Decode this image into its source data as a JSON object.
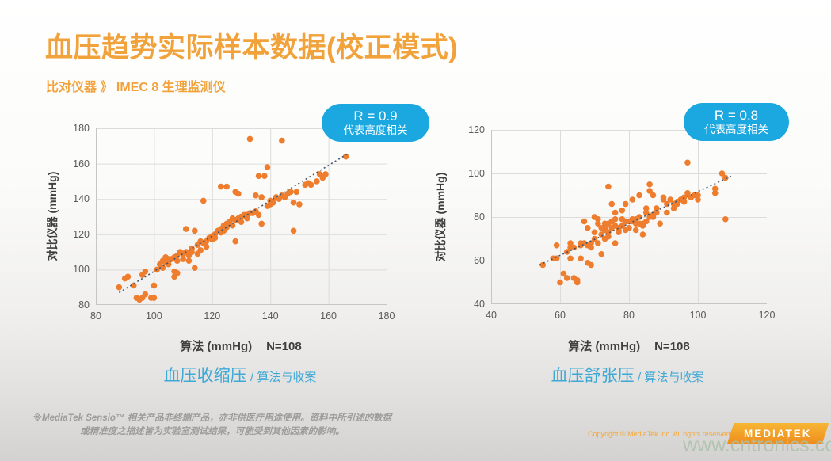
{
  "title": "血压趋势实际样本数据(校正模式)",
  "subtitle": "比对仪器 》 IMEC 8 生理监测仪",
  "footnote": {
    "line1": "※MediaTek Sensio™ 相关产品非终端产品，亦非供医疗用途使用。资料中所引述的数据",
    "line2": "或精准度之描述皆为实验室测试结果，可能受到其他因素的影响。"
  },
  "copyright": "Copyright © MediaTek Inc. All rights reserved",
  "logo_text": "MEDIATEK",
  "watermark": "www.cntronics.com",
  "colors": {
    "accent_orange": "#F1A23B",
    "point_orange": "#EE7D2E",
    "badge_cyan": "#1BA8E0",
    "caption_cyan": "#3FA9D6",
    "trend_blue": "#44546A",
    "grid_gray": "#DCDCDC",
    "axis_gray": "#C6C6C6",
    "tick_text": "#595959"
  },
  "chart_data": [
    {
      "type": "scatter",
      "caption": "血压收缩压",
      "caption_suffix": "/ 算法与收案",
      "xlabel": "算法 (mmHg)",
      "n_label": "N=108",
      "ylabel": "对比仪器 (mmHg)",
      "xlim": [
        80,
        180
      ],
      "ylim": [
        80,
        180
      ],
      "xticks": [
        80,
        100,
        120,
        140,
        160,
        180
      ],
      "yticks": [
        80,
        100,
        120,
        140,
        160,
        180
      ],
      "grid": true,
      "badge": {
        "line1": "R = 0.9",
        "line2": "代表高度相关"
      },
      "trend": [
        [
          88,
          87
        ],
        [
          167,
          166
        ]
      ],
      "points": [
        [
          88,
          90
        ],
        [
          90,
          95
        ],
        [
          91,
          96
        ],
        [
          93,
          91
        ],
        [
          94,
          84
        ],
        [
          95,
          83
        ],
        [
          96,
          84
        ],
        [
          96,
          97
        ],
        [
          97,
          99
        ],
        [
          97,
          86
        ],
        [
          99,
          84
        ],
        [
          100,
          91
        ],
        [
          100,
          84
        ],
        [
          101,
          100
        ],
        [
          102,
          103
        ],
        [
          103,
          101
        ],
        [
          103,
          105
        ],
        [
          104,
          107
        ],
        [
          104,
          104
        ],
        [
          105,
          106
        ],
        [
          105,
          103
        ],
        [
          106,
          106
        ],
        [
          107,
          107
        ],
        [
          107,
          96
        ],
        [
          107,
          99
        ],
        [
          108,
          108
        ],
        [
          108,
          105
        ],
        [
          108,
          98
        ],
        [
          109,
          110
        ],
        [
          110,
          109
        ],
        [
          110,
          106
        ],
        [
          111,
          123
        ],
        [
          111,
          110
        ],
        [
          112,
          108
        ],
        [
          112,
          105
        ],
        [
          113,
          112
        ],
        [
          113,
          110
        ],
        [
          114,
          101
        ],
        [
          114,
          122
        ],
        [
          115,
          114
        ],
        [
          115,
          109
        ],
        [
          116,
          116
        ],
        [
          116,
          111
        ],
        [
          117,
          139
        ],
        [
          117,
          115
        ],
        [
          118,
          116
        ],
        [
          118,
          113
        ],
        [
          119,
          118
        ],
        [
          120,
          119
        ],
        [
          120,
          117
        ],
        [
          121,
          120
        ],
        [
          121,
          118
        ],
        [
          122,
          122
        ],
        [
          123,
          147
        ],
        [
          123,
          123
        ],
        [
          123,
          121
        ],
        [
          124,
          125
        ],
        [
          124,
          122
        ],
        [
          125,
          147
        ],
        [
          125,
          124
        ],
        [
          125,
          126
        ],
        [
          126,
          127
        ],
        [
          127,
          129
        ],
        [
          127,
          125
        ],
        [
          128,
          144
        ],
        [
          128,
          116
        ],
        [
          128,
          128
        ],
        [
          129,
          129
        ],
        [
          129,
          143
        ],
        [
          130,
          130
        ],
        [
          130,
          127
        ],
        [
          131,
          131
        ],
        [
          132,
          131
        ],
        [
          132,
          129
        ],
        [
          133,
          174
        ],
        [
          133,
          132
        ],
        [
          134,
          132
        ],
        [
          135,
          142
        ],
        [
          135,
          133
        ],
        [
          136,
          131
        ],
        [
          136,
          153
        ],
        [
          137,
          126
        ],
        [
          137,
          141
        ],
        [
          138,
          153
        ],
        [
          139,
          158
        ],
        [
          139,
          136
        ],
        [
          140,
          137
        ],
        [
          140,
          139
        ],
        [
          141,
          138
        ],
        [
          142,
          141
        ],
        [
          143,
          140
        ],
        [
          144,
          173
        ],
        [
          144,
          142
        ],
        [
          145,
          141
        ],
        [
          146,
          143
        ],
        [
          147,
          144
        ],
        [
          148,
          138
        ],
        [
          148,
          122
        ],
        [
          149,
          144
        ],
        [
          150,
          137
        ],
        [
          152,
          148
        ],
        [
          153,
          149
        ],
        [
          154,
          148
        ],
        [
          156,
          150
        ],
        [
          157,
          154
        ],
        [
          158,
          152
        ],
        [
          159,
          154
        ],
        [
          166,
          164
        ]
      ]
    },
    {
      "type": "scatter",
      "caption": "血压舒张压",
      "caption_suffix": "/ 算法与收案",
      "xlabel": "算法 (mmHg)",
      "n_label": "N=108",
      "ylabel": "对比仪器 (mmHg)",
      "xlim": [
        40,
        120
      ],
      "ylim": [
        40,
        120
      ],
      "xticks": [
        40,
        60,
        80,
        100,
        120
      ],
      "yticks": [
        40,
        60,
        80,
        100,
        120
      ],
      "grid": true,
      "badge": {
        "line1": "R = 0.8",
        "line2": "代表高度相关"
      },
      "trend": [
        [
          54,
          58
        ],
        [
          110,
          99
        ]
      ],
      "points": [
        [
          55,
          58
        ],
        [
          58,
          61
        ],
        [
          59,
          67
        ],
        [
          59,
          61
        ],
        [
          60,
          50
        ],
        [
          61,
          54
        ],
        [
          62,
          52
        ],
        [
          62,
          64
        ],
        [
          63,
          66
        ],
        [
          63,
          68
        ],
        [
          63,
          61
        ],
        [
          64,
          66
        ],
        [
          64,
          52
        ],
        [
          65,
          51
        ],
        [
          65,
          50
        ],
        [
          66,
          61
        ],
        [
          66,
          67
        ],
        [
          66,
          68
        ],
        [
          67,
          68
        ],
        [
          67,
          78
        ],
        [
          68,
          75
        ],
        [
          68,
          59
        ],
        [
          68,
          67
        ],
        [
          69,
          68
        ],
        [
          69,
          66
        ],
        [
          69,
          58
        ],
        [
          70,
          73
        ],
        [
          70,
          80
        ],
        [
          70,
          70
        ],
        [
          71,
          79
        ],
        [
          71,
          68
        ],
        [
          71,
          77
        ],
        [
          72,
          75
        ],
        [
          72,
          63
        ],
        [
          72,
          72
        ],
        [
          73,
          74
        ],
        [
          73,
          75
        ],
        [
          73,
          77
        ],
        [
          74,
          71
        ],
        [
          74,
          77
        ],
        [
          74,
          94
        ],
        [
          74,
          73
        ],
        [
          75,
          86
        ],
        [
          75,
          78
        ],
        [
          75,
          75
        ],
        [
          76,
          79
        ],
        [
          76,
          82
        ],
        [
          76,
          68
        ],
        [
          76,
          76
        ],
        [
          77,
          74
        ],
        [
          77,
          73
        ],
        [
          77,
          75
        ],
        [
          78,
          79
        ],
        [
          78,
          83
        ],
        [
          78,
          76
        ],
        [
          79,
          74
        ],
        [
          79,
          86
        ],
        [
          79,
          78
        ],
        [
          80,
          75
        ],
        [
          80,
          78
        ],
        [
          81,
          79
        ],
        [
          81,
          88
        ],
        [
          81,
          78
        ],
        [
          82,
          77
        ],
        [
          82,
          74
        ],
        [
          82,
          79
        ],
        [
          83,
          90
        ],
        [
          83,
          77
        ],
        [
          83,
          80
        ],
        [
          84,
          72
        ],
        [
          84,
          77
        ],
        [
          84,
          76
        ],
        [
          85,
          82
        ],
        [
          85,
          78
        ],
        [
          86,
          80
        ],
        [
          86,
          92
        ],
        [
          86,
          95
        ],
        [
          87,
          81
        ],
        [
          87,
          90
        ],
        [
          87,
          80
        ],
        [
          88,
          84
        ],
        [
          88,
          82
        ],
        [
          89,
          77
        ],
        [
          90,
          89
        ],
        [
          90,
          88
        ],
        [
          91,
          82
        ],
        [
          91,
          86
        ],
        [
          92,
          88
        ],
        [
          93,
          86
        ],
        [
          93,
          84
        ],
        [
          94,
          86
        ],
        [
          94,
          87
        ],
        [
          95,
          88
        ],
        [
          96,
          89
        ],
        [
          96,
          87
        ],
        [
          97,
          105
        ],
        [
          97,
          91
        ],
        [
          98,
          89
        ],
        [
          99,
          90
        ],
        [
          100,
          90
        ],
        [
          100,
          88
        ],
        [
          105,
          91
        ],
        [
          105,
          93
        ],
        [
          107,
          100
        ],
        [
          108,
          98
        ],
        [
          108,
          79
        ],
        [
          73,
          70
        ],
        [
          85,
          84
        ]
      ]
    }
  ]
}
